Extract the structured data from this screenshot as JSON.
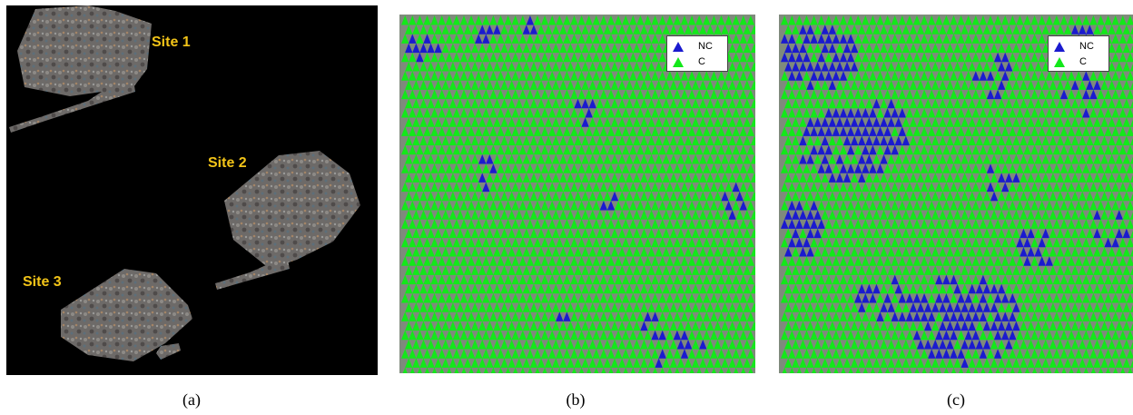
{
  "panel_a": {
    "sites": [
      {
        "label": "Site 1"
      },
      {
        "label": "Site 2"
      },
      {
        "label": "Site 3"
      }
    ],
    "background_color": "#000000",
    "label_color": "#f2c418"
  },
  "panel_b": {
    "legend": [
      {
        "label": "NC",
        "color": "#1a1acf",
        "marker": "triangle-icon"
      },
      {
        "label": "C",
        "color": "#13e81a",
        "marker": "triangle-icon"
      }
    ]
  },
  "panel_c": {
    "legend": [
      {
        "label": "NC",
        "color": "#1a1acf",
        "marker": "triangle-icon"
      },
      {
        "label": "C",
        "color": "#13e81a",
        "marker": "triangle-icon"
      }
    ]
  },
  "captions": [
    "(a)",
    "(b)",
    "(c)"
  ],
  "colors": {
    "nc": "#1a1acf",
    "c": "#13e81a",
    "text": "#000000"
  }
}
